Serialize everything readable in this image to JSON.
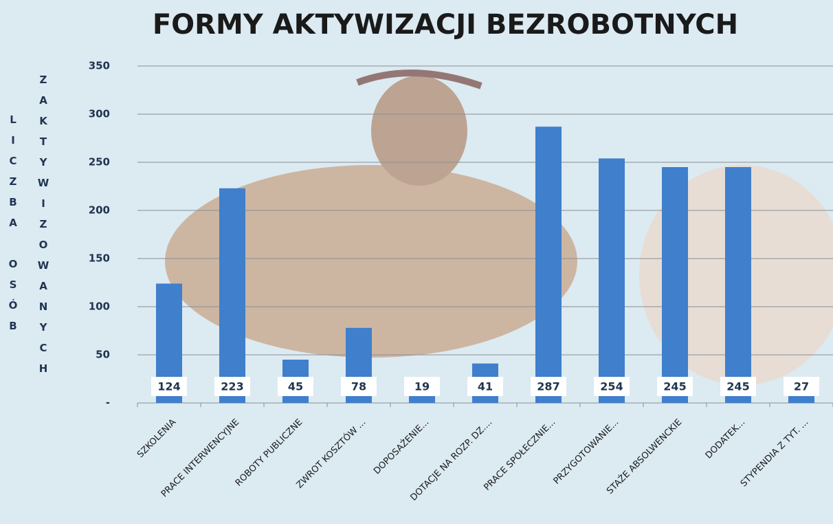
{
  "chart_data": {
    "type": "bar",
    "title": "FORMY AKTYWIZACJI BEZROBOTNYCH",
    "ylabel": [
      "LICZBA OSÓB",
      "ZAKTYWIZOWANYCH"
    ],
    "categories": [
      "SZKOLENIA",
      "PRACE INTERWENCYJNE",
      "ROBOTY PUBLICZNE",
      "ZWROT KOSZTÓW ...",
      "DOPOSAŻENIE...",
      "DOTACJE NA ROZP. DZ....",
      "PRACE SPOŁECZNIE...",
      "PRZYGOTOWANIE...",
      "STAŻE ABSOLWENCKIE",
      "DODATEK...",
      "STYPENDIA Z TYT. ..."
    ],
    "values": [
      124,
      223,
      45,
      78,
      19,
      41,
      287,
      254,
      245,
      245,
      27
    ],
    "color": "#3f7fcc",
    "ylim": [
      0,
      350
    ],
    "yticks": [
      {
        "value": 0,
        "label": "-"
      },
      50,
      100,
      150,
      200,
      250,
      300,
      350
    ],
    "grid": true
  }
}
